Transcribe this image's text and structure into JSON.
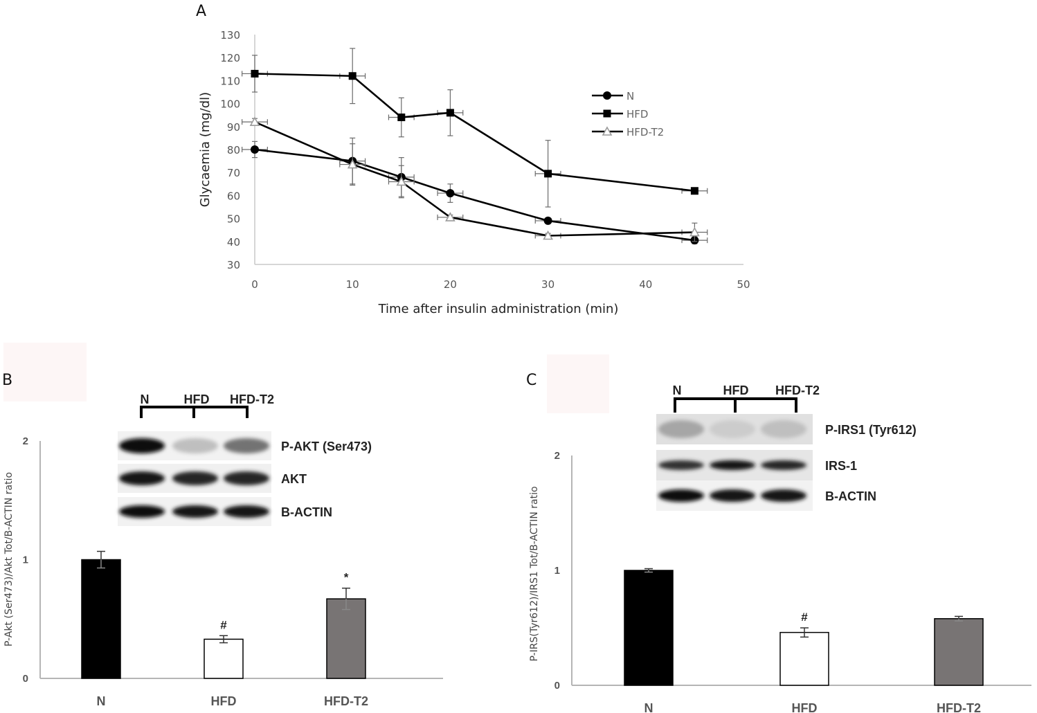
{
  "panel_labels": {
    "a": "A",
    "b": "B",
    "c": "C"
  },
  "chart_data": [
    {
      "type": "line",
      "panel": "A",
      "xlabel": "Time after insulin administration (min)",
      "ylabel": "Glycaemia (mg/dl)",
      "xlim": [
        0,
        50
      ],
      "ylim": [
        30,
        130
      ],
      "xticks": [
        "0",
        "10",
        "20",
        "30",
        "40",
        "50"
      ],
      "yticks": [
        "30",
        "40",
        "50",
        "60",
        "70",
        "80",
        "90",
        "100",
        "110",
        "120",
        "130"
      ],
      "legend_position": "top-right",
      "grid": false,
      "series": [
        {
          "name": "N",
          "marker": "circle",
          "color": "#000000",
          "x": [
            0,
            10,
            15,
            20,
            30,
            45
          ],
          "y": [
            80,
            75,
            68,
            61,
            49,
            40.5
          ],
          "yerr": [
            3.5,
            10,
            8.5,
            4,
            1,
            1.5
          ]
        },
        {
          "name": "HFD",
          "marker": "square",
          "color": "#000000",
          "x": [
            0,
            10,
            15,
            20,
            30,
            45
          ],
          "y": [
            113,
            112,
            94,
            96,
            69.5,
            62
          ],
          "yerr": [
            8,
            12,
            8.5,
            10,
            14.5,
            1
          ]
        },
        {
          "name": "HFD-T2",
          "marker": "triangle-open",
          "color": "#9a9a9a",
          "x": [
            0,
            10,
            15,
            20,
            30,
            45
          ],
          "y": [
            92,
            73.5,
            66,
            50.5,
            42.5,
            44
          ],
          "yerr": [
            1.5,
            9,
            7,
            1,
            1,
            4
          ]
        }
      ]
    },
    {
      "type": "bar",
      "panel": "B",
      "ylabel": "P-Akt (Ser473)/Akt Tot/B-ACTIN ratio",
      "categories": [
        "N",
        "HFD",
        "HFD-T2"
      ],
      "values": [
        1.0,
        0.33,
        0.67
      ],
      "errors": [
        0.07,
        0.03,
        0.09
      ],
      "colors": [
        "#000000",
        "#ffffff",
        "#787474"
      ],
      "significance": [
        "",
        "#",
        "*"
      ],
      "ylim": [
        0,
        2
      ],
      "yticks": [
        "0",
        "1",
        "2"
      ],
      "blot": {
        "lanes": [
          "N",
          "HFD",
          "HFD-T2"
        ],
        "rows": [
          "P-AKT (Ser473)",
          "AKT",
          "B-ACTIN"
        ],
        "intensity": [
          [
            0.95,
            0.25,
            0.55
          ],
          [
            0.9,
            0.85,
            0.85
          ],
          [
            0.95,
            0.9,
            0.9
          ]
        ]
      }
    },
    {
      "type": "bar",
      "panel": "C",
      "ylabel": "P-IRS(Tyr612)/IRS1 Tot/B-ACTIN ratio",
      "categories": [
        "N",
        "HFD",
        "HFD-T2"
      ],
      "values": [
        1.0,
        0.46,
        0.58
      ],
      "errors": [
        0.015,
        0.04,
        0.02
      ],
      "colors": [
        "#000000",
        "#ffffff",
        "#787474"
      ],
      "significance": [
        "",
        "#",
        ""
      ],
      "ylim": [
        0,
        2
      ],
      "yticks": [
        "0",
        "1",
        "2"
      ],
      "blot": {
        "lanes": [
          "N",
          "HFD",
          "HFD-T2"
        ],
        "rows": [
          "P-IRS1 (Tyr612)",
          "IRS-1",
          "B-ACTIN"
        ],
        "intensity": [
          [
            0.35,
            0.2,
            0.25
          ],
          [
            0.8,
            0.9,
            0.85
          ],
          [
            0.95,
            0.9,
            0.9
          ]
        ]
      }
    }
  ]
}
